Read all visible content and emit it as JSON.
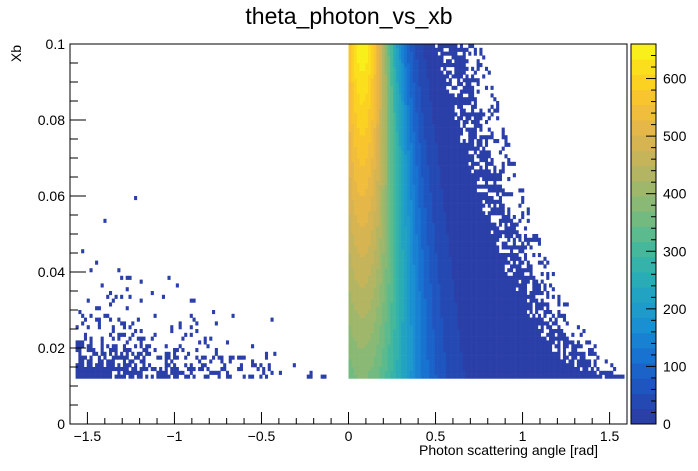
{
  "chart_data": {
    "type": "heatmap",
    "title": "theta_photon_vs_xb",
    "xlabel": "Photon scattering angle [rad]",
    "ylabel": "Xb",
    "xlim": [
      -1.6,
      1.6
    ],
    "ylim": [
      0,
      0.1
    ],
    "x_ticks": [
      -1.5,
      -1,
      -0.5,
      0,
      0.5,
      1,
      1.5
    ],
    "x_tick_labels": [
      "−1.5",
      "−1",
      "−0.5",
      "0",
      "0.5",
      "1",
      "1.5"
    ],
    "y_ticks": [
      0,
      0.02,
      0.04,
      0.06,
      0.08,
      0.1
    ],
    "y_tick_labels": [
      "0",
      "0.02",
      "0.04",
      "0.06",
      "0.08",
      "0.1"
    ],
    "zlim": [
      0,
      660
    ],
    "z_ticks": [
      0,
      100,
      200,
      300,
      400,
      500,
      600
    ],
    "z_tick_labels": [
      "0",
      "100",
      "200",
      "300",
      "400",
      "500",
      "600"
    ],
    "palette": [
      "#2b3fa8",
      "#2549b2",
      "#1f55bf",
      "#1b63c9",
      "#1872d0",
      "#1881d2",
      "#1a8fd1",
      "#1e9acb",
      "#23a3c2",
      "#2aacb6",
      "#35b3aa",
      "#45b89c",
      "#5bba8e",
      "#72ba80",
      "#89b975",
      "#9fb76b",
      "#b3b562",
      "#c5b45a",
      "#d6b451",
      "#e5b748",
      "#f1bd3c",
      "#f8c52f",
      "#fbd122",
      "#fcdf1c",
      "#f9f01b"
    ],
    "regions": [
      {
        "name": "negative-angle-band",
        "x": [
          -1.56,
          -0.1
        ],
        "y_min": 0.0125,
        "y_max_at_x_min": 0.035,
        "y_max_at_x_max": 0.014,
        "z_typical": 10
      },
      {
        "name": "positive-angle-band",
        "x": [
          0.0,
          1.58
        ],
        "y_min": 0.0125,
        "y_max": 0.1,
        "peak_x": 0.08,
        "peak_z": 640,
        "edge_x_at_y_max": 0.65,
        "edge_x_at_y_min": 1.58
      }
    ]
  }
}
